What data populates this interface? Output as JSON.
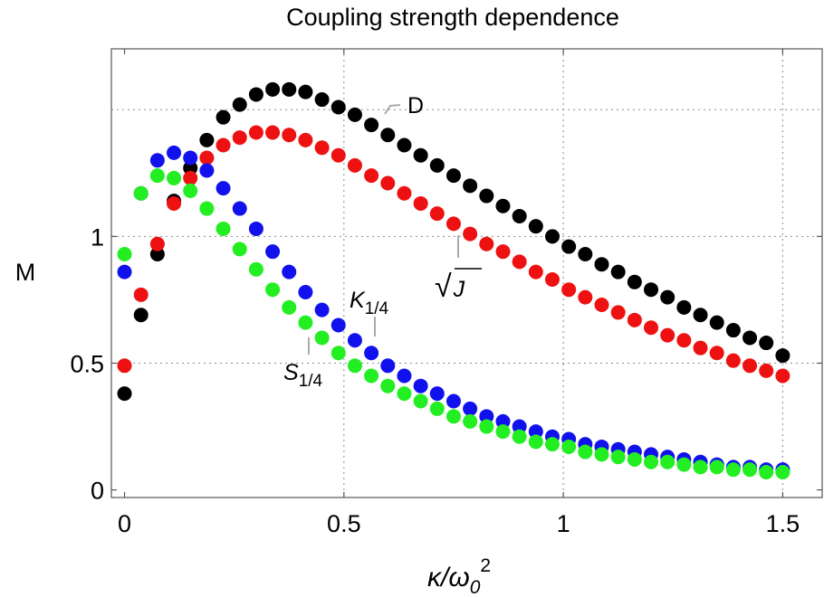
{
  "chart_data": {
    "type": "scatter",
    "title": "Coupling strength dependence",
    "xlabel": "κ/ω",
    "xlabel_sub": "0",
    "xlabel_sup": "2",
    "ylabel": "M",
    "xlim": [
      -0.03,
      1.59
    ],
    "ylim": [
      -0.03,
      1.74
    ],
    "xticks": [
      0,
      0.5,
      1,
      1.5
    ],
    "xtick_labels": [
      "0",
      "0.5",
      "1",
      "1.5"
    ],
    "yticks": [
      0,
      0.5,
      1
    ],
    "ytick_labels": [
      "0",
      "0.5",
      "1"
    ],
    "grid": true,
    "grid_x": [
      0.5,
      1,
      1.5
    ],
    "grid_y": [
      0.5,
      1,
      1.5
    ],
    "legend": "none",
    "annotations": [
      {
        "series": "D",
        "text": "D"
      },
      {
        "series": "sqrtJ",
        "text": "J",
        "prefix": "√"
      },
      {
        "series": "K",
        "text": "K",
        "sub": "1/4"
      },
      {
        "series": "S",
        "text": "S",
        "sub": "1/4"
      }
    ],
    "x": [
      0,
      0.0375,
      0.075,
      0.1125,
      0.15,
      0.1875,
      0.225,
      0.2625,
      0.3,
      0.3375,
      0.375,
      0.4125,
      0.45,
      0.4875,
      0.525,
      0.5625,
      0.6,
      0.6375,
      0.675,
      0.7125,
      0.75,
      0.7875,
      0.825,
      0.8625,
      0.9,
      0.9375,
      0.975,
      1.0125,
      1.05,
      1.0875,
      1.125,
      1.1625,
      1.2,
      1.2375,
      1.275,
      1.3125,
      1.35,
      1.3875,
      1.425,
      1.4625,
      1.5
    ],
    "series": [
      {
        "key": "D",
        "color": "#000000",
        "values": [
          0.38,
          0.69,
          0.93,
          1.14,
          1.27,
          1.38,
          1.47,
          1.52,
          1.56,
          1.58,
          1.58,
          1.57,
          1.54,
          1.51,
          1.48,
          1.44,
          1.4,
          1.36,
          1.32,
          1.28,
          1.24,
          1.2,
          1.16,
          1.12,
          1.08,
          1.04,
          1.0,
          0.96,
          0.93,
          0.89,
          0.86,
          0.82,
          0.79,
          0.76,
          0.72,
          0.69,
          0.66,
          0.63,
          0.6,
          0.58,
          0.53
        ]
      },
      {
        "key": "sqrtJ",
        "color": "#ee1111",
        "values": [
          0.49,
          0.77,
          0.97,
          1.13,
          1.23,
          1.31,
          1.36,
          1.39,
          1.41,
          1.41,
          1.4,
          1.38,
          1.35,
          1.32,
          1.28,
          1.24,
          1.21,
          1.17,
          1.13,
          1.09,
          1.05,
          1.01,
          0.97,
          0.94,
          0.9,
          0.86,
          0.83,
          0.79,
          0.76,
          0.73,
          0.7,
          0.67,
          0.64,
          0.61,
          0.59,
          0.56,
          0.54,
          0.51,
          0.49,
          0.47,
          0.45
        ]
      },
      {
        "key": "K",
        "color": "#1111ee",
        "values": [
          0.86,
          1.17,
          1.3,
          1.33,
          1.31,
          1.26,
          1.19,
          1.11,
          1.03,
          0.94,
          0.86,
          0.78,
          0.71,
          0.65,
          0.59,
          0.54,
          0.49,
          0.45,
          0.41,
          0.38,
          0.35,
          0.32,
          0.29,
          0.27,
          0.25,
          0.23,
          0.21,
          0.2,
          0.18,
          0.17,
          0.16,
          0.15,
          0.14,
          0.13,
          0.12,
          0.11,
          0.1,
          0.09,
          0.09,
          0.08,
          0.08
        ]
      },
      {
        "key": "S",
        "color": "#22ee22",
        "values": [
          0.93,
          1.17,
          1.24,
          1.23,
          1.18,
          1.11,
          1.03,
          0.95,
          0.87,
          0.79,
          0.72,
          0.66,
          0.6,
          0.54,
          0.49,
          0.45,
          0.41,
          0.38,
          0.35,
          0.32,
          0.29,
          0.27,
          0.25,
          0.23,
          0.21,
          0.19,
          0.18,
          0.17,
          0.15,
          0.14,
          0.13,
          0.12,
          0.11,
          0.11,
          0.1,
          0.09,
          0.09,
          0.08,
          0.08,
          0.07,
          0.07
        ]
      }
    ]
  }
}
